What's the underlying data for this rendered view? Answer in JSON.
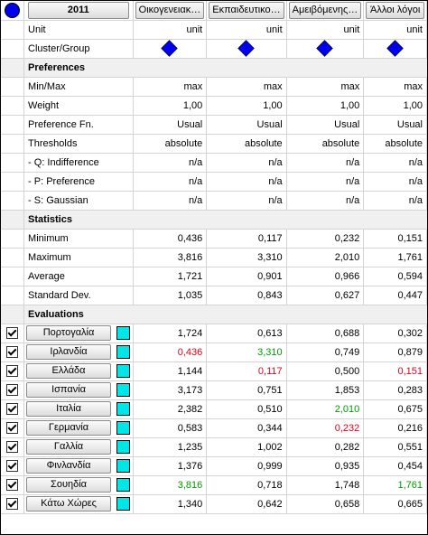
{
  "header": {
    "scenario": "2011",
    "criteria": [
      "Οικογενειακ…",
      "Εκπαιδευτικο…",
      "Αμειβόμενης…",
      "Άλλοι λόγοι"
    ]
  },
  "top_rows": [
    {
      "label": "Unit",
      "values": [
        "unit",
        "unit",
        "unit",
        "unit"
      ]
    },
    {
      "label": "Cluster/Group",
      "values": [
        "diamond",
        "diamond",
        "diamond",
        "diamond"
      ]
    }
  ],
  "preferences": {
    "title": "Preferences",
    "rows": [
      {
        "label": "Min/Max",
        "values": [
          "max",
          "max",
          "max",
          "max"
        ]
      },
      {
        "label": "Weight",
        "values": [
          "1,00",
          "1,00",
          "1,00",
          "1,00"
        ]
      },
      {
        "label": "Preference Fn.",
        "values": [
          "Usual",
          "Usual",
          "Usual",
          "Usual"
        ]
      },
      {
        "label": "Thresholds",
        "values": [
          "absolute",
          "absolute",
          "absolute",
          "absolute"
        ]
      },
      {
        "label": "- Q: Indifference",
        "values": [
          "n/a",
          "n/a",
          "n/a",
          "n/a"
        ]
      },
      {
        "label": "- P: Preference",
        "values": [
          "n/a",
          "n/a",
          "n/a",
          "n/a"
        ]
      },
      {
        "label": "- S: Gaussian",
        "values": [
          "n/a",
          "n/a",
          "n/a",
          "n/a"
        ]
      }
    ]
  },
  "statistics": {
    "title": "Statistics",
    "rows": [
      {
        "label": "Minimum",
        "values": [
          "0,436",
          "0,117",
          "0,232",
          "0,151"
        ]
      },
      {
        "label": "Maximum",
        "values": [
          "3,816",
          "3,310",
          "2,010",
          "1,761"
        ]
      },
      {
        "label": "Average",
        "values": [
          "1,721",
          "0,901",
          "0,966",
          "0,594"
        ]
      },
      {
        "label": "Standard Dev.",
        "values": [
          "1,035",
          "0,843",
          "0,627",
          "0,447"
        ]
      }
    ]
  },
  "evaluations": {
    "title": "Evaluations",
    "swatch_color": "#00e5e5",
    "rows": [
      {
        "name": "Πορτογαλία",
        "values": [
          "1,724",
          "0,613",
          "0,688",
          "0,302"
        ],
        "colors": [
          "",
          "",
          "",
          ""
        ]
      },
      {
        "name": "Ιρλανδία",
        "values": [
          "0,436",
          "3,310",
          "0,749",
          "0,879"
        ],
        "colors": [
          "red",
          "green",
          "",
          ""
        ]
      },
      {
        "name": "Ελλάδα",
        "values": [
          "1,144",
          "0,117",
          "0,500",
          "0,151"
        ],
        "colors": [
          "",
          "red",
          "",
          "red"
        ]
      },
      {
        "name": "Ισπανία",
        "values": [
          "3,173",
          "0,751",
          "1,853",
          "0,283"
        ],
        "colors": [
          "",
          "",
          "",
          ""
        ]
      },
      {
        "name": "Ιταλία",
        "values": [
          "2,382",
          "0,510",
          "2,010",
          "0,675"
        ],
        "colors": [
          "",
          "",
          "green",
          ""
        ]
      },
      {
        "name": "Γερμανία",
        "values": [
          "0,583",
          "0,344",
          "0,232",
          "0,216"
        ],
        "colors": [
          "",
          "",
          "red",
          ""
        ]
      },
      {
        "name": "Γαλλία",
        "values": [
          "1,235",
          "1,002",
          "0,282",
          "0,551"
        ],
        "colors": [
          "",
          "",
          "",
          ""
        ]
      },
      {
        "name": "Φινλανδία",
        "values": [
          "1,376",
          "0,999",
          "0,935",
          "0,454"
        ],
        "colors": [
          "",
          "",
          "",
          ""
        ]
      },
      {
        "name": "Σουηδία",
        "values": [
          "3,816",
          "0,718",
          "1,748",
          "1,761"
        ],
        "colors": [
          "green",
          "",
          "",
          "green"
        ]
      },
      {
        "name": "Κάτω Χώρες",
        "values": [
          "1,340",
          "0,642",
          "0,658",
          "0,665"
        ],
        "colors": [
          "",
          "",
          "",
          ""
        ]
      }
    ]
  }
}
